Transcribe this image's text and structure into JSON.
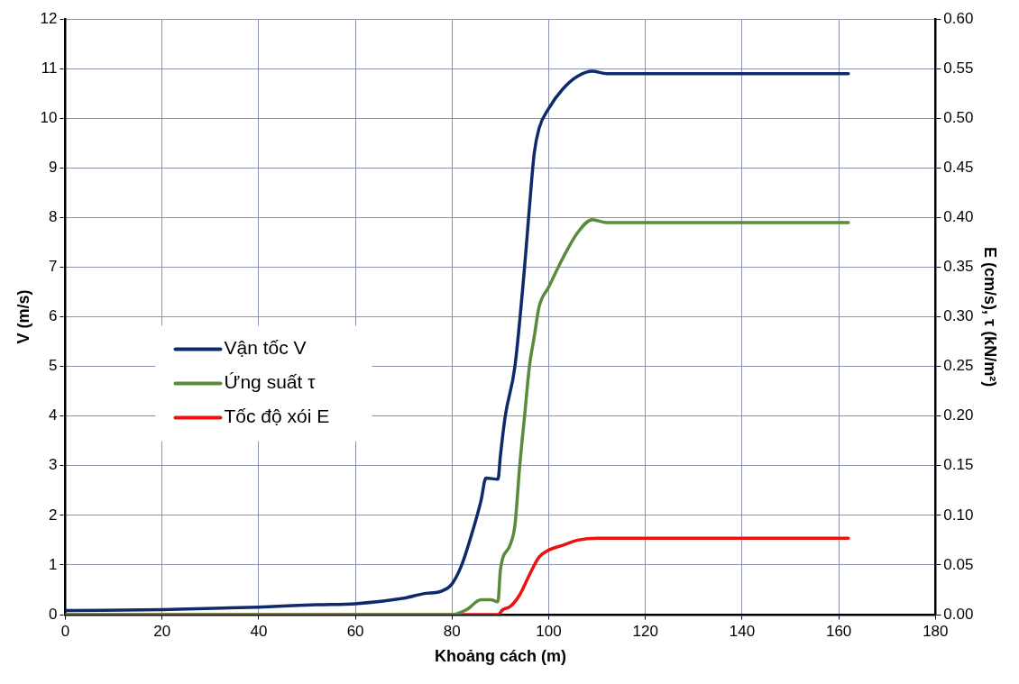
{
  "chart_data": {
    "type": "line",
    "xlabel": "Khoảng cách (m)",
    "ylabel": "V (m/s)",
    "y2label": "E (cm/s), τ (kN/m²)",
    "xlim": [
      0,
      180
    ],
    "xticks": [
      0,
      20,
      40,
      60,
      80,
      100,
      120,
      140,
      160,
      180
    ],
    "ylim": [
      0,
      12
    ],
    "yticks": [
      0,
      1,
      2,
      3,
      4,
      5,
      6,
      7,
      8,
      9,
      10,
      11,
      12
    ],
    "y2lim": [
      0,
      0.6
    ],
    "y2ticks": [
      {
        "value": 0,
        "label": "0.00"
      },
      {
        "value": 0.05,
        "label": "0.05"
      },
      {
        "value": 0.1,
        "label": "0.10"
      },
      {
        "value": 0.15,
        "label": "0.15"
      },
      {
        "value": 0.2,
        "label": "0.20"
      },
      {
        "value": 0.25,
        "label": "0.25"
      },
      {
        "value": 0.3,
        "label": "0.30"
      },
      {
        "value": 0.35,
        "label": "0.35"
      },
      {
        "value": 0.4,
        "label": "0.40"
      },
      {
        "value": 0.45,
        "label": "0.45"
      },
      {
        "value": 0.5,
        "label": "0.50"
      },
      {
        "value": 0.55,
        "label": "0.55"
      },
      {
        "value": 0.6,
        "label": "0.60"
      }
    ],
    "grid": true,
    "legend": "left",
    "marker": "none",
    "line_style": "solid",
    "series": [
      {
        "name": "Vận tốc V",
        "color": "#0f2a6b",
        "x": [
          0,
          20,
          40,
          52,
          60,
          70,
          74,
          78,
          80,
          82,
          84,
          86,
          87,
          89.5,
          90,
          91,
          93,
          95,
          96,
          97,
          98,
          100,
          103,
          106,
          109,
          112,
          162
        ],
        "values": [
          0.08,
          0.1,
          0.15,
          0.2,
          0.22,
          0.33,
          0.42,
          0.48,
          0.62,
          1.0,
          1.6,
          2.3,
          2.75,
          2.73,
          3.2,
          4.0,
          5.0,
          7.0,
          8.2,
          9.3,
          9.8,
          10.2,
          10.6,
          10.85,
          10.95,
          10.9,
          10.9
        ]
      },
      {
        "name": "Ứng suất τ",
        "color": "#5a8a3a",
        "axis": "y2",
        "x": [
          0,
          80,
          83,
          86,
          88,
          89.5,
          90,
          92,
          93,
          94,
          95,
          96,
          97,
          98,
          100,
          103,
          106,
          109,
          112,
          162
        ],
        "values": [
          0,
          0,
          0.005,
          0.015,
          0.015,
          0.013,
          0.045,
          0.07,
          0.09,
          0.15,
          0.2,
          0.25,
          0.28,
          0.31,
          0.33,
          0.36,
          0.385,
          0.398,
          0.395,
          0.395
        ]
      },
      {
        "name": "Tốc độ xói E",
        "color": "#ee1111",
        "axis": "y2",
        "x": [
          0,
          89.5,
          90.5,
          92,
          94,
          96,
          98,
          100,
          103,
          106,
          110,
          162
        ],
        "values": [
          0,
          0,
          0.005,
          0.008,
          0.02,
          0.04,
          0.058,
          0.065,
          0.07,
          0.075,
          0.077,
          0.077
        ]
      }
    ]
  }
}
